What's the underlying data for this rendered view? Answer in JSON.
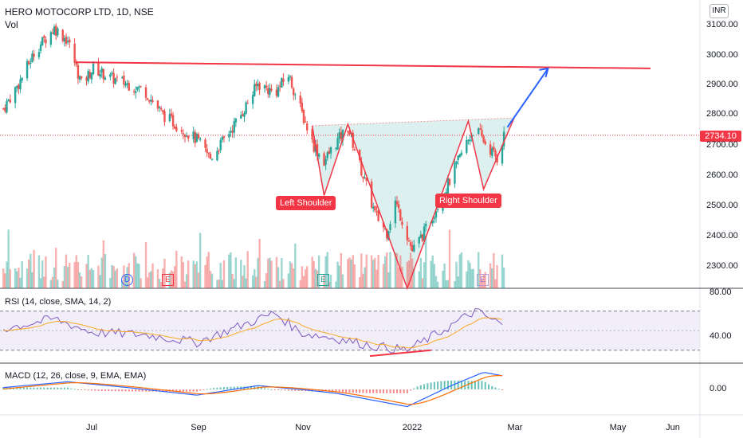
{
  "header": {
    "symbol_title": "HERO MOTOCORP LTD, 1D, NSE",
    "volume_label": "Vol",
    "currency": "INR"
  },
  "colors": {
    "up": "#26a69a",
    "down": "#ef5350",
    "annotation_red": "#f23645",
    "projection_blue": "#2962ff",
    "pattern_fill": "#b2dfdb",
    "rsi_band": "#ede7f6",
    "rsi_line": "#7e57c2",
    "rsi_ma": "#f9a825",
    "macd_line": "#2962ff",
    "signal_line": "#ff6d00"
  },
  "annotations": {
    "left_shoulder": "Left Shoulder",
    "right_shoulder": "Right Shoulder",
    "event_markers": [
      "D",
      "E",
      "E",
      "E"
    ]
  },
  "indicators": {
    "rsi_label": "RSI (14, close, SMA, 14, 2)",
    "macd_label": "MACD (12, 26, close, 9, EMA, EMA)"
  },
  "chart_data": {
    "type": "candlestick",
    "title": "HERO MOTOCORP LTD, 1D, NSE",
    "last_price_label": "2734.10",
    "last_price": 2734.1,
    "price_axis_ticks": [
      "3100.00",
      "3000.00",
      "2900.00",
      "2800.00",
      "2700.00",
      "2600.00",
      "2500.00",
      "2400.00",
      "2300.00"
    ],
    "price_ylim": [
      2240,
      3140
    ],
    "x_ticks": [
      "Jul",
      "Sep",
      "Nov",
      "2022",
      "Mar",
      "May",
      "Jun"
    ],
    "resistance_level": 2950,
    "close_path": [
      {
        "x": "2021-05-03",
        "y": 2820
      },
      {
        "x": "2021-05-12",
        "y": 2900
      },
      {
        "x": "2021-05-22",
        "y": 3010
      },
      {
        "x": "2021-06-02",
        "y": 3080
      },
      {
        "x": "2021-06-10",
        "y": 3040
      },
      {
        "x": "2021-06-18",
        "y": 2900
      },
      {
        "x": "2021-06-25",
        "y": 2950
      },
      {
        "x": "2021-07-05",
        "y": 2920
      },
      {
        "x": "2021-07-15",
        "y": 2900
      },
      {
        "x": "2021-07-25",
        "y": 2880
      },
      {
        "x": "2021-08-05",
        "y": 2800
      },
      {
        "x": "2021-08-15",
        "y": 2760
      },
      {
        "x": "2021-08-25",
        "y": 2720
      },
      {
        "x": "2021-09-02",
        "y": 2660
      },
      {
        "x": "2021-09-10",
        "y": 2720
      },
      {
        "x": "2021-09-20",
        "y": 2800
      },
      {
        "x": "2021-09-30",
        "y": 2900
      },
      {
        "x": "2021-10-10",
        "y": 2870
      },
      {
        "x": "2021-10-18",
        "y": 2930
      },
      {
        "x": "2021-10-25",
        "y": 2820
      },
      {
        "x": "2021-11-02",
        "y": 2700
      },
      {
        "x": "2021-11-08",
        "y": 2650
      },
      {
        "x": "2021-11-15",
        "y": 2710
      },
      {
        "x": "2021-11-22",
        "y": 2760
      },
      {
        "x": "2021-11-30",
        "y": 2620
      },
      {
        "x": "2021-12-08",
        "y": 2480
      },
      {
        "x": "2021-12-15",
        "y": 2420
      },
      {
        "x": "2021-12-20",
        "y": 2520
      },
      {
        "x": "2021-12-24",
        "y": 2460
      },
      {
        "x": "2021-12-30",
        "y": 2360
      },
      {
        "x": "2022-01-06",
        "y": 2420
      },
      {
        "x": "2022-01-15",
        "y": 2520
      },
      {
        "x": "2022-01-22",
        "y": 2600
      },
      {
        "x": "2022-01-30",
        "y": 2700
      },
      {
        "x": "2022-02-05",
        "y": 2760
      },
      {
        "x": "2022-02-12",
        "y": 2700
      },
      {
        "x": "2022-02-18",
        "y": 2660
      },
      {
        "x": "2022-02-22",
        "y": 2734.1
      }
    ],
    "head_and_shoulders": {
      "left_shoulder": {
        "x": "2021-11-08",
        "y": 2540
      },
      "head": {
        "x": "2021-12-27",
        "y": 2240
      },
      "right_shoulder": {
        "x": "2022-02-10",
        "y": 2560
      },
      "neckline": [
        {
          "x": "2021-11-01",
          "y": 2765
        },
        {
          "x": "2022-02-28",
          "y": 2790
        }
      ],
      "projection_target": {
        "x": "2022-03-20",
        "y": 2950
      }
    },
    "rsi": {
      "label": "RSI (14, close, SMA, 14, 2)",
      "ticks": [
        "80.00",
        "40.00"
      ],
      "upper": 70,
      "lower": 30,
      "ylim": [
        20,
        90
      ],
      "values": [
        {
          "x": "2021-05-03",
          "y": 52
        },
        {
          "x": "2021-06-02",
          "y": 62
        },
        {
          "x": "2021-06-25",
          "y": 48
        },
        {
          "x": "2021-07-25",
          "y": 46
        },
        {
          "x": "2021-08-25",
          "y": 38
        },
        {
          "x": "2021-09-20",
          "y": 55
        },
        {
          "x": "2021-10-10",
          "y": 68
        },
        {
          "x": "2021-10-25",
          "y": 48
        },
        {
          "x": "2021-11-15",
          "y": 42
        },
        {
          "x": "2021-12-08",
          "y": 34
        },
        {
          "x": "2021-12-27",
          "y": 30
        },
        {
          "x": "2022-01-15",
          "y": 48
        },
        {
          "x": "2022-02-05",
          "y": 70
        },
        {
          "x": "2022-02-22",
          "y": 55
        }
      ]
    },
    "macd": {
      "label": "MACD (12, 26, close, 9, EMA, EMA)",
      "ticks": [
        "0.00"
      ],
      "values": [
        {
          "x": "2021-05-03",
          "y": 10
        },
        {
          "x": "2021-06-10",
          "y": 40
        },
        {
          "x": "2021-07-15",
          "y": 10
        },
        {
          "x": "2021-08-25",
          "y": -30
        },
        {
          "x": "2021-09-30",
          "y": 20
        },
        {
          "x": "2021-10-25",
          "y": 0
        },
        {
          "x": "2021-11-15",
          "y": -20
        },
        {
          "x": "2021-12-27",
          "y": -90
        },
        {
          "x": "2022-01-22",
          "y": 20
        },
        {
          "x": "2022-02-10",
          "y": 90
        },
        {
          "x": "2022-02-22",
          "y": 70
        }
      ]
    }
  }
}
